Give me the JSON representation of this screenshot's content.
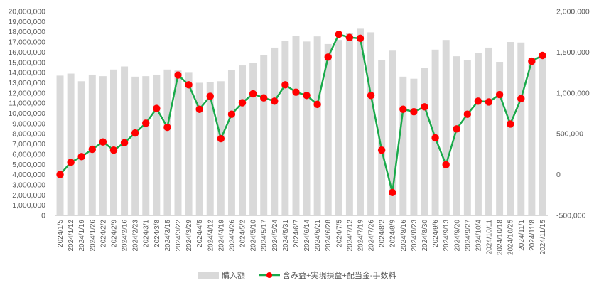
{
  "chart_data": {
    "type": "bar+line",
    "categories": [
      "2024/1/5",
      "2024/1/12",
      "2024/1/19",
      "2024/1/26",
      "2024/2/2",
      "2024/2/9",
      "2024/2/16",
      "2024/2/23",
      "2024/3/1",
      "2024/3/8",
      "2024/3/15",
      "2024/3/22",
      "2024/3/29",
      "2024/4/5",
      "2024/4/12",
      "2024/4/19",
      "2024/4/26",
      "2024/5/2",
      "2024/5/10",
      "2024/5/17",
      "2024/5/24",
      "2024/5/31",
      "2024/6/7",
      "2024/6/14",
      "2024/6/21",
      "2024/6/28",
      "2024/7/5",
      "2024/7/12",
      "2024/7/19",
      "2024/7/26",
      "2024/8/2",
      "2024/8/9",
      "2024/8/16",
      "2024/8/23",
      "2024/8/30",
      "2024/9/6",
      "2024/9/13",
      "2024/9/20",
      "2024/9/27",
      "2024/10/4",
      "2024/10/11",
      "2024/10/18",
      "2024/10/25",
      "2024/11/1",
      "2024/11/8",
      "2024/11/15"
    ],
    "series": [
      {
        "name": "購入額",
        "type": "bar",
        "axis": "left",
        "color": "#d9d9d9",
        "values": [
          13700000,
          13900000,
          13150000,
          13800000,
          13650000,
          14300000,
          14600000,
          13600000,
          13650000,
          13800000,
          14300000,
          14200000,
          14050000,
          13000000,
          13100000,
          13150000,
          14250000,
          14700000,
          14950000,
          15750000,
          16450000,
          17100000,
          17600000,
          17050000,
          17550000,
          16800000,
          17200000,
          17900000,
          18300000,
          17950000,
          15250000,
          16150000,
          13600000,
          13400000,
          14450000,
          16250000,
          17200000,
          15600000,
          15250000,
          15950000,
          16450000,
          15050000,
          17000000,
          16950000,
          15450000,
          15700000
        ]
      },
      {
        "name": "含み益+実現損益+配当金-手数料",
        "type": "line",
        "axis": "right",
        "color": "#1aaa4b",
        "marker_color": "#ff0000",
        "values": [
          0,
          150000,
          220000,
          310000,
          400000,
          300000,
          390000,
          510000,
          630000,
          810000,
          580000,
          1220000,
          1100000,
          800000,
          960000,
          440000,
          740000,
          880000,
          990000,
          940000,
          900000,
          1100000,
          1010000,
          970000,
          860000,
          1440000,
          1720000,
          1680000,
          1670000,
          970000,
          300000,
          -220000,
          800000,
          770000,
          830000,
          450000,
          120000,
          560000,
          740000,
          900000,
          890000,
          980000,
          620000,
          930000,
          1390000,
          1460000
        ]
      }
    ],
    "y_left": {
      "range": [
        0,
        20000000
      ],
      "step": 1000000,
      "tick_labels": [
        "0",
        "1,000,000",
        "2,000,000",
        "3,000,000",
        "4,000,000",
        "5,000,000",
        "6,000,000",
        "7,000,000",
        "8,000,000",
        "9,000,000",
        "10,000,000",
        "11,000,000",
        "12,000,000",
        "13,000,000",
        "14,000,000",
        "15,000,000",
        "16,000,000",
        "17,000,000",
        "18,000,000",
        "19,000,000",
        "20,000,000"
      ]
    },
    "y_right": {
      "range": [
        -500000,
        2000000
      ],
      "step": 500000,
      "tick_labels": [
        "-500,000",
        "0",
        "500,000",
        "1,000,000",
        "1,500,000",
        "2,000,000"
      ]
    },
    "grid": false,
    "legend_position": "bottom-center",
    "title": "",
    "xlabel": "",
    "ylabel": ""
  }
}
